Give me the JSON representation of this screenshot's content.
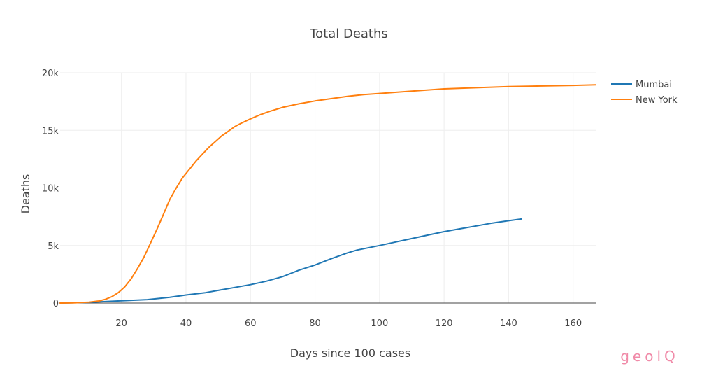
{
  "chart_data": {
    "type": "line",
    "title": "Total Deaths",
    "xlabel": "Days since 100 cases",
    "ylabel": "Deaths",
    "xlim": [
      1,
      167
    ],
    "ylim": [
      0,
      20000
    ],
    "x_ticks": [
      20,
      40,
      60,
      80,
      100,
      120,
      140,
      160
    ],
    "x_tick_labels": [
      "20",
      "40",
      "60",
      "80",
      "100",
      "120",
      "140",
      "160"
    ],
    "y_ticks": [
      0,
      5000,
      10000,
      15000,
      20000
    ],
    "y_tick_labels": [
      "0",
      "5k",
      "10k",
      "15k",
      "20k"
    ],
    "grid": true,
    "legend_position": "top-right",
    "series": [
      {
        "name": "Mumbai",
        "color": "#1f77b4",
        "x": [
          1,
          10,
          20,
          28,
          35,
          40,
          46,
          50,
          55,
          60,
          65,
          70,
          75,
          80,
          85,
          90,
          93,
          100,
          105,
          110,
          115,
          120,
          125,
          130,
          135,
          140,
          144
        ],
        "y": [
          0,
          60,
          200,
          300,
          500,
          700,
          900,
          1100,
          1350,
          1600,
          1900,
          2300,
          2850,
          3300,
          3850,
          4350,
          4600,
          5000,
          5300,
          5600,
          5900,
          6200,
          6450,
          6700,
          6950,
          7150,
          7300
        ]
      },
      {
        "name": "New York",
        "color": "#ff7f0e",
        "x": [
          1,
          5,
          10,
          13,
          15,
          17,
          19,
          21,
          23,
          25,
          27,
          29,
          31,
          33,
          35,
          37,
          39,
          41,
          43,
          45,
          47,
          49,
          51,
          53,
          55,
          57,
          60,
          63,
          66,
          70,
          75,
          80,
          85,
          90,
          95,
          100,
          110,
          120,
          130,
          140,
          150,
          160,
          167
        ],
        "y": [
          0,
          20,
          80,
          180,
          320,
          550,
          900,
          1400,
          2100,
          3000,
          4000,
          5200,
          6400,
          7700,
          9000,
          10000,
          10900,
          11600,
          12300,
          12900,
          13500,
          14000,
          14500,
          14900,
          15300,
          15600,
          16000,
          16350,
          16650,
          17000,
          17300,
          17550,
          17750,
          17950,
          18100,
          18200,
          18400,
          18600,
          18700,
          18800,
          18850,
          18900,
          18950
        ]
      }
    ]
  },
  "branding": {
    "watermark": "geolQ",
    "watermark_color": "#f08aa8"
  }
}
